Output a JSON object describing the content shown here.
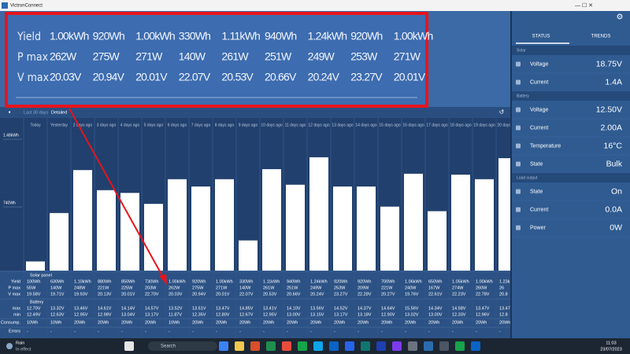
{
  "window": {
    "title": "VictronConnect"
  },
  "tabs": [
    "Last 30 days",
    "Detailed"
  ],
  "chart_data": {
    "type": "bar",
    "categories": [
      "Today",
      "Yesterday",
      "2 days ago",
      "3 days ago",
      "4 days ago",
      "5 days ago",
      "6 days ago",
      "7 days ago",
      "8 days ago",
      "9 days ago",
      "10 days ago",
      "11 days ago",
      "12 days ago",
      "13 days ago",
      "14 days ago",
      "15 days ago",
      "16 days ago",
      "17 days ago",
      "18 days ago",
      "19 days ago",
      "20 days ago"
    ],
    "values": [
      100,
      630,
      1100,
      880,
      850,
      730,
      1000,
      920,
      1000,
      330,
      1110,
      940,
      1240,
      920,
      920,
      700,
      1060,
      650,
      1050,
      1000,
      1230
    ],
    "value_labels": [
      "100Wh",
      "630Wh",
      "1.10kWh",
      "880Wh",
      "850Wh",
      "730Wh",
      "1.00kWh",
      "920Wh",
      "1.00kWh",
      "330Wh",
      "1.11kWh",
      "940Wh",
      "1.24kWh",
      "920Wh",
      "920Wh",
      "700Wh",
      "1.06kWh",
      "650Wh",
      "1.05kWh",
      "1.00kWh",
      "1.23k"
    ],
    "color": "#ffffff",
    "ylim": [
      0,
      1670
    ],
    "yticks": [
      {
        "value": 1480,
        "label": "1.48kWh"
      },
      {
        "value": 740,
        "label": "740Wh"
      }
    ]
  },
  "table": {
    "sections": [
      "Solar panel",
      "Battery"
    ],
    "row_labels": [
      "Yield",
      "P max",
      "V max",
      "max",
      "min",
      "Consump.",
      "Errors"
    ],
    "pmax": [
      "55W",
      "140W",
      "248W",
      "221W",
      "225W",
      "203W",
      "262W",
      "275W",
      "271W",
      "140W",
      "261W",
      "251W",
      "249W",
      "253W",
      "209W",
      "221W",
      "240W",
      "167W",
      "274W",
      "260W",
      "26"
    ],
    "vmax": [
      "19.58V",
      "19.71V",
      "19.93V",
      "20.13V",
      "20.01V",
      "22.70V",
      "20.03V",
      "20.94V",
      "20.01V",
      "22.07V",
      "20.53V",
      "20.66V",
      "20.24V",
      "23.27V",
      "22.28V",
      "20.27V",
      "19.76V",
      "22.61V",
      "22.23V",
      "22.78V",
      "20.8"
    ],
    "bmax": [
      "12.70V",
      "13.32V",
      "13.46V",
      "14.61V",
      "14.14V",
      "14.57V",
      "13.52V",
      "13.51V",
      "13.47V",
      "14.85V",
      "13.41V",
      "14.10V",
      "13.56V",
      "14.52V",
      "14.37V",
      "14.64V",
      "15.56V",
      "14.34V",
      "14.58V",
      "13.47V",
      "13.47"
    ],
    "bmin": [
      "12.49V",
      "12.63V",
      "12.95V",
      "12.98V",
      "13.04V",
      "13.17V",
      "11.87V",
      "12.35V",
      "12.80V",
      "12.67V",
      "12.95V",
      "13.00V",
      "13.15V",
      "13.17V",
      "13.18V",
      "12.90V",
      "13.02V",
      "13.00V",
      "12.33V",
      "12.96V",
      "12.8"
    ],
    "consumption": [
      "10Wh",
      "10Wh",
      "20Wh",
      "20Wh",
      "20Wh",
      "20Wh",
      "10Wh",
      "20Wh",
      "20Wh",
      "20Wh",
      "20Wh",
      "20Wh",
      "20Wh",
      "20Wh",
      "20Wh",
      "20Wh",
      "20Wh",
      "20Wh",
      "20Wh",
      "20Wh",
      "20Wh"
    ],
    "errors": [
      "-",
      "-",
      "-",
      "-",
      "-",
      "-",
      "-",
      "-",
      "-",
      "-",
      "-",
      "-",
      "-",
      "-",
      "-",
      "-",
      "-",
      "-",
      "-",
      "-",
      "-"
    ]
  },
  "zoom": {
    "labels": [
      "Yield",
      "P max",
      "V max"
    ],
    "columns": [
      [
        "1.00kWh",
        "262W",
        "20.03V"
      ],
      [
        "920Wh",
        "275W",
        "20.94V"
      ],
      [
        "1.00kWh",
        "271W",
        "20.01V"
      ],
      [
        "330Wh",
        "140W",
        "22.07V"
      ],
      [
        "1.11kWh",
        "261W",
        "20.53V"
      ],
      [
        "940Wh",
        "251W",
        "20.66V"
      ],
      [
        "1.24kWh",
        "249W",
        "20.24V"
      ],
      [
        "920Wh",
        "253W",
        "23.27V"
      ],
      [
        "1.00kWh",
        "271W",
        "20.01V"
      ]
    ]
  },
  "status": {
    "tabs": [
      "STATUS",
      "TRENDS"
    ],
    "sections": [
      {
        "title": "Solar",
        "rows": [
          {
            "label": "Voltage",
            "value": "18.75V"
          },
          {
            "label": "Current",
            "value": "1.4A"
          }
        ]
      },
      {
        "title": "Battery",
        "rows": [
          {
            "label": "Voltage",
            "value": "12.50V"
          },
          {
            "label": "Current",
            "value": "2.00A"
          },
          {
            "label": "Temperature",
            "value": "16°C"
          },
          {
            "label": "State",
            "value": "Bulk"
          }
        ]
      },
      {
        "title": "Load output",
        "rows": [
          {
            "label": "State",
            "value": "On"
          },
          {
            "label": "Current",
            "value": "0.0A"
          },
          {
            "label": "Power",
            "value": "0W"
          }
        ]
      }
    ]
  },
  "taskbar": {
    "weather": [
      "Rain",
      "In effect"
    ],
    "search": "Search",
    "time": "11:03",
    "date": "23/07/2023"
  }
}
